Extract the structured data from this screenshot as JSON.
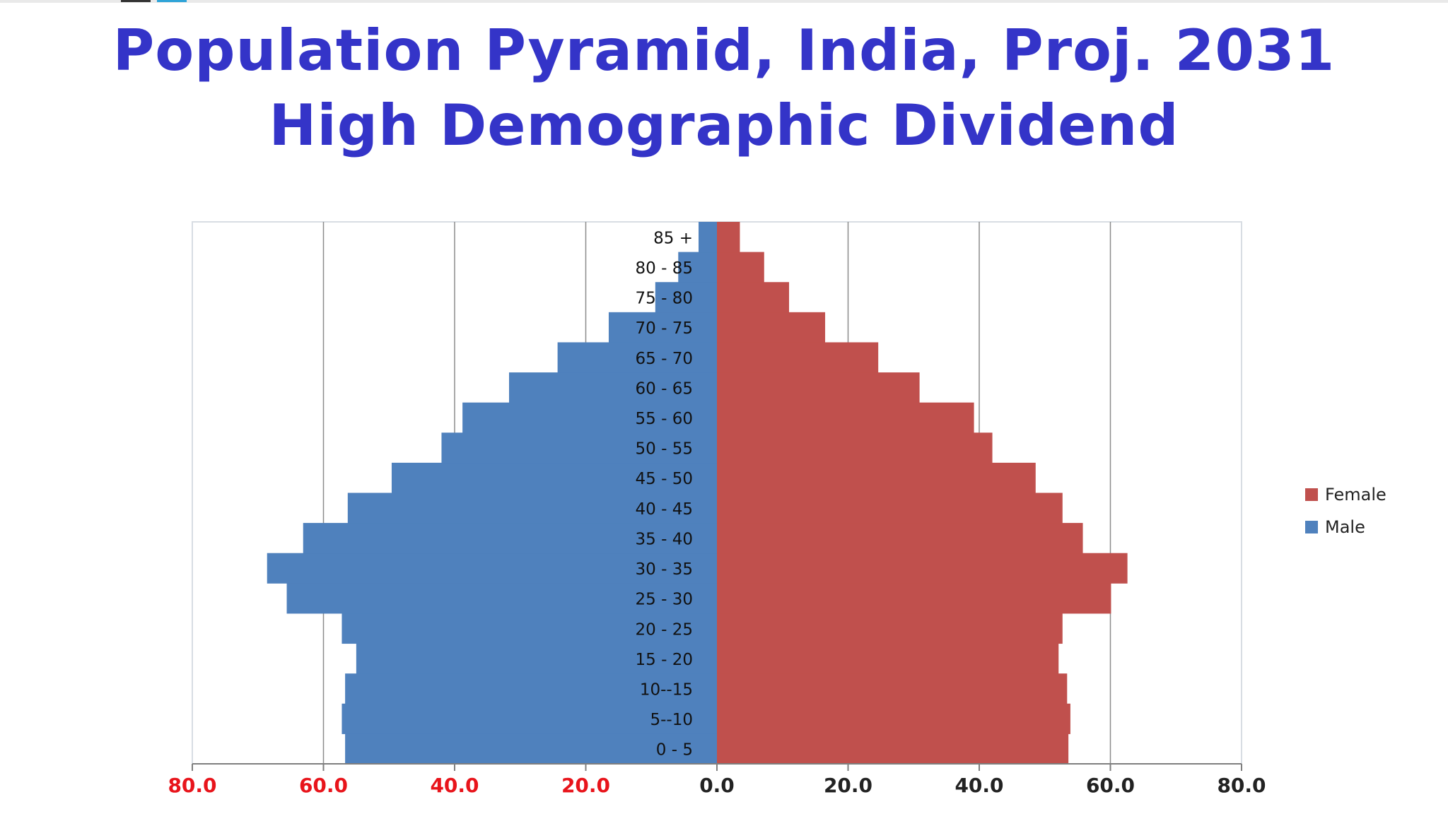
{
  "slide": {
    "title_line1": "Population Pyramid, India, Proj. 2031",
    "title_line2": "High Demographic Dividend"
  },
  "colors": {
    "title": "#3434c8",
    "male": "#4f81bd",
    "female": "#c0504d",
    "left_tick_labels": "#e8141b",
    "right_tick_labels": "#222222"
  },
  "chart_data": {
    "type": "bar",
    "orientation": "horizontal",
    "title": "",
    "xlabel": "",
    "ylabel": "",
    "xlim": [
      -80,
      80
    ],
    "x_ticks": [
      "80.0",
      "60.0",
      "40.0",
      "20.0",
      "0.0",
      "20.0",
      "40.0",
      "60.0",
      "80.0"
    ],
    "grid": true,
    "legend_position": "right",
    "categories": [
      "0 - 5",
      "5--10",
      "10--15",
      "15 - 20",
      "20 - 25",
      "25 - 30",
      "30 - 35",
      "35 - 40",
      "40 - 45",
      "45 - 50",
      "50 - 55",
      "55 - 60",
      "60 - 65",
      "65 - 70",
      "70 - 75",
      "75 - 80",
      "80 - 85",
      "85 +"
    ],
    "series": [
      {
        "name": "Female",
        "values": [
          53.6,
          53.9,
          53.4,
          52.1,
          52.7,
          60.1,
          62.6,
          55.8,
          52.7,
          48.6,
          42.0,
          39.2,
          30.9,
          24.6,
          16.5,
          11.0,
          7.2,
          3.5
        ]
      },
      {
        "name": "Male",
        "values": [
          56.7,
          57.2,
          56.7,
          55.0,
          57.2,
          65.6,
          68.6,
          63.1,
          56.3,
          49.6,
          42.0,
          38.8,
          31.7,
          24.3,
          16.5,
          9.4,
          5.9,
          2.8
        ]
      }
    ]
  }
}
